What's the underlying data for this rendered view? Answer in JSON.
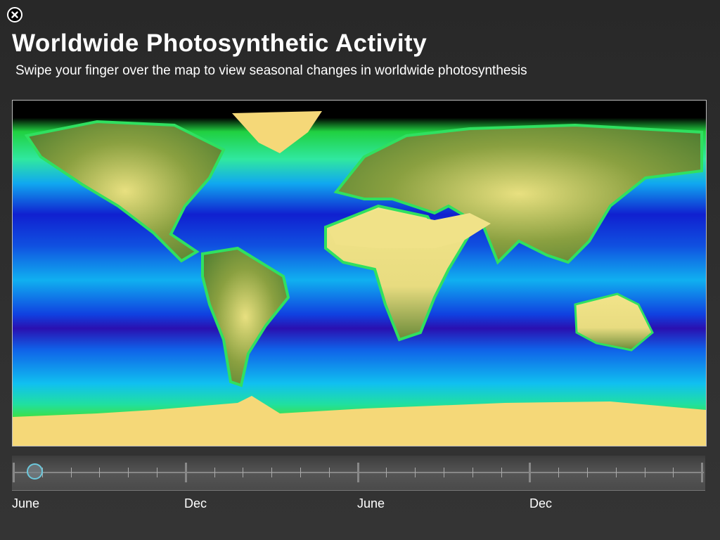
{
  "header": {
    "close_icon": "close-circle-icon",
    "title": "Worldwide Photosynthetic Activity",
    "subtitle": "Swipe your finger over the map to view seasonal changes in worldwide photosynthesis"
  },
  "timeline": {
    "labels": [
      "June",
      "Dec",
      "June",
      "Dec"
    ],
    "position_fraction": 0.02,
    "colors": {
      "thumb": "#6cc8dc"
    }
  },
  "map": {
    "colors": {
      "land_high": "#f2e07a",
      "land_low": "#5a7a30",
      "ocean_low": "#1010c8",
      "ocean_mid": "#00a8f0",
      "ocean_high": "#00e060",
      "ice": "#f5d878"
    }
  }
}
